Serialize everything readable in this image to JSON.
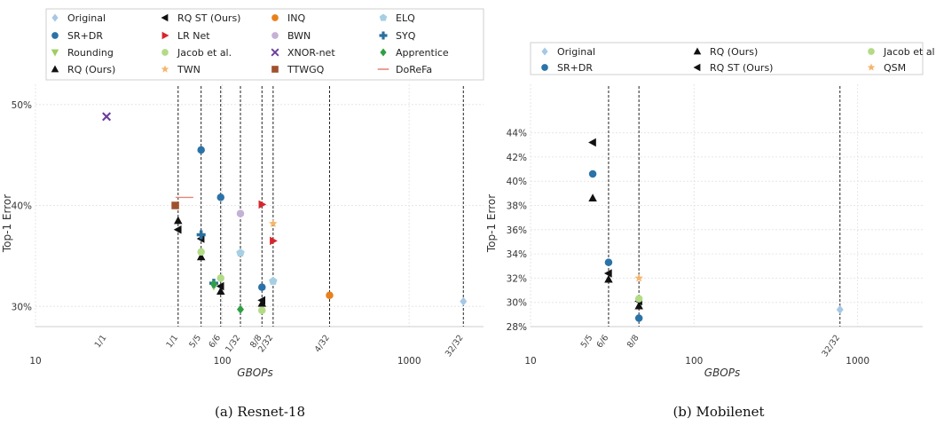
{
  "chart_data": [
    {
      "type": "scatter",
      "caption": "(a) Resnet-18",
      "xlabel": "GBOPs",
      "ylabel": "Top-1 Error",
      "x_scale": "log",
      "xlim": [
        10,
        2500
      ],
      "ylim": [
        28,
        52
      ],
      "x_ticks": [
        {
          "v": 10,
          "label": "10"
        },
        {
          "v": 100,
          "label": "100"
        },
        {
          "v": 1000,
          "label": "1000"
        }
      ],
      "y_ticks": [
        {
          "v": 30,
          "label": "30%"
        },
        {
          "v": 40,
          "label": "40%"
        },
        {
          "v": 50,
          "label": "50%"
        }
      ],
      "bitwidth_lines": [
        {
          "x": 24,
          "label": "1/1",
          "line": false
        },
        {
          "x": 58,
          "label": "1/1",
          "line": true
        },
        {
          "x": 77,
          "label": "5/5",
          "line": true
        },
        {
          "x": 98,
          "label": "6/6",
          "line": true
        },
        {
          "x": 125,
          "label": "1/32",
          "line": true
        },
        {
          "x": 163,
          "label": "8/8",
          "line": true
        },
        {
          "x": 187,
          "label": "2/32",
          "line": true
        },
        {
          "x": 375,
          "label": "4/32",
          "line": true
        },
        {
          "x": 1950,
          "label": "32/32",
          "line": true
        }
      ],
      "legend": {
        "placement": "top",
        "columns": 4,
        "entries": [
          "Original",
          "SR+DR",
          "Rounding",
          "RQ (Ours)",
          "RQ ST (Ours)",
          "LR Net",
          "Jacob et al.",
          "TWN",
          "INQ",
          "BWN",
          "XNOR-net",
          "TTWGQ",
          "ELQ",
          "SYQ",
          "Apprentice",
          "DoReFa"
        ]
      },
      "series": [
        {
          "name": "Original",
          "color": "#a6c8e6",
          "marker": "diamond",
          "points": [
            [
              1950,
              30.5
            ]
          ]
        },
        {
          "name": "SR+DR",
          "color": "#2a73a8",
          "marker": "circle",
          "points": [
            [
              77,
              45.5
            ],
            [
              98,
              40.8
            ],
            [
              163,
              31.9
            ]
          ]
        },
        {
          "name": "Rounding",
          "color": "#9fce63",
          "marker": "triangle-down",
          "points": [
            [
              90,
              32.0
            ]
          ]
        },
        {
          "name": "RQ (Ours)",
          "color": "#111111",
          "marker": "triangle-up",
          "points": [
            [
              58,
              38.5
            ],
            [
              77,
              34.9
            ],
            [
              98,
              31.5
            ],
            [
              163,
              30.3
            ]
          ]
        },
        {
          "name": "RQ ST (Ours)",
          "color": "#111111",
          "marker": "triangle-left",
          "points": [
            [
              58,
              37.6
            ],
            [
              77,
              36.7
            ],
            [
              98,
              32.0
            ],
            [
              163,
              30.6
            ]
          ]
        },
        {
          "name": "LR Net",
          "color": "#d6262e",
          "marker": "triangle-right",
          "points": [
            [
              163,
              40.1
            ],
            [
              187,
              36.5
            ]
          ]
        },
        {
          "name": "Jacob et al.",
          "color": "#b3db86",
          "marker": "circle",
          "points": [
            [
              77,
              35.4
            ],
            [
              98,
              32.8
            ],
            [
              163,
              29.6
            ]
          ]
        },
        {
          "name": "TWN",
          "color": "#f5b66c",
          "marker": "star",
          "points": [
            [
              187,
              38.2
            ]
          ]
        },
        {
          "name": "INQ",
          "color": "#e8801b",
          "marker": "circle",
          "points": [
            [
              375,
              31.1
            ]
          ]
        },
        {
          "name": "BWN",
          "color": "#c5b1d6",
          "marker": "circle",
          "points": [
            [
              125,
              39.2
            ]
          ]
        },
        {
          "name": "XNOR-net",
          "color": "#6a3d9a",
          "marker": "x",
          "points": [
            [
              24,
              48.8
            ]
          ]
        },
        {
          "name": "TTWGQ",
          "color": "#a0522d",
          "marker": "square",
          "points": [
            [
              56,
              40.0
            ]
          ]
        },
        {
          "name": "ELQ",
          "color": "#a6cfe3",
          "marker": "pentagon",
          "points": [
            [
              125,
              35.3
            ],
            [
              187,
              32.5
            ]
          ]
        },
        {
          "name": "SYQ",
          "color": "#2a6fa0",
          "marker": "plus",
          "points": [
            [
              77,
              37.1
            ],
            [
              90,
              32.3
            ]
          ]
        },
        {
          "name": "Apprentice",
          "color": "#2ea043",
          "marker": "diamond",
          "points": [
            [
              90,
              32.2
            ],
            [
              125,
              29.7
            ]
          ]
        },
        {
          "name": "DoReFa",
          "color": "#e5877a",
          "marker": "line",
          "points": [
            [
              60,
              40.8
            ]
          ]
        }
      ]
    },
    {
      "type": "scatter",
      "caption": "(b) Mobilenet",
      "xlabel": "GBOPs",
      "ylabel": "Top-1 Error",
      "x_scale": "log",
      "xlim": [
        10,
        2500
      ],
      "ylim": [
        28,
        48
      ],
      "x_ticks": [
        {
          "v": 10,
          "label": "10"
        },
        {
          "v": 100,
          "label": "100"
        },
        {
          "v": 1000,
          "label": "1000"
        }
      ],
      "y_ticks": [
        {
          "v": 28,
          "label": "28%"
        },
        {
          "v": 30,
          "label": "30%"
        },
        {
          "v": 32,
          "label": "32%"
        },
        {
          "v": 34,
          "label": "34%"
        },
        {
          "v": 36,
          "label": "36%"
        },
        {
          "v": 38,
          "label": "38%"
        },
        {
          "v": 40,
          "label": "40%"
        },
        {
          "v": 42,
          "label": "42%"
        },
        {
          "v": 44,
          "label": "44%"
        }
      ],
      "bitwidth_lines": [
        {
          "x": 24,
          "label": "5/5",
          "line": false
        },
        {
          "x": 30,
          "label": "6/6",
          "line": true
        },
        {
          "x": 46,
          "label": "8/8",
          "line": true
        },
        {
          "x": 780,
          "label": "32/32",
          "line": true
        }
      ],
      "legend": {
        "placement": "top",
        "columns": 3,
        "entries": [
          "Original",
          "SR+DR",
          "RQ (Ours)",
          "RQ ST (Ours)",
          "Jacob et al",
          "QSM"
        ]
      },
      "series": [
        {
          "name": "Original",
          "color": "#a6c8e6",
          "marker": "diamond",
          "points": [
            [
              780,
              29.4
            ]
          ]
        },
        {
          "name": "SR+DR",
          "color": "#2a73a8",
          "marker": "circle",
          "points": [
            [
              24,
              40.6
            ],
            [
              30,
              33.3
            ],
            [
              46,
              28.7
            ]
          ]
        },
        {
          "name": "RQ (Ours)",
          "color": "#111111",
          "marker": "triangle-up",
          "points": [
            [
              24,
              38.6
            ],
            [
              30,
              31.9
            ],
            [
              46,
              29.7
            ]
          ]
        },
        {
          "name": "RQ ST (Ours)",
          "color": "#111111",
          "marker": "triangle-left",
          "points": [
            [
              24,
              43.2
            ],
            [
              30,
              32.4
            ],
            [
              46,
              30.1
            ]
          ]
        },
        {
          "name": "Jacob et al",
          "color": "#b3db86",
          "marker": "circle",
          "points": [
            [
              46,
              30.3
            ]
          ]
        },
        {
          "name": "QSM",
          "color": "#f5b66c",
          "marker": "star",
          "points": [
            [
              46,
              32.0
            ]
          ]
        }
      ]
    }
  ]
}
